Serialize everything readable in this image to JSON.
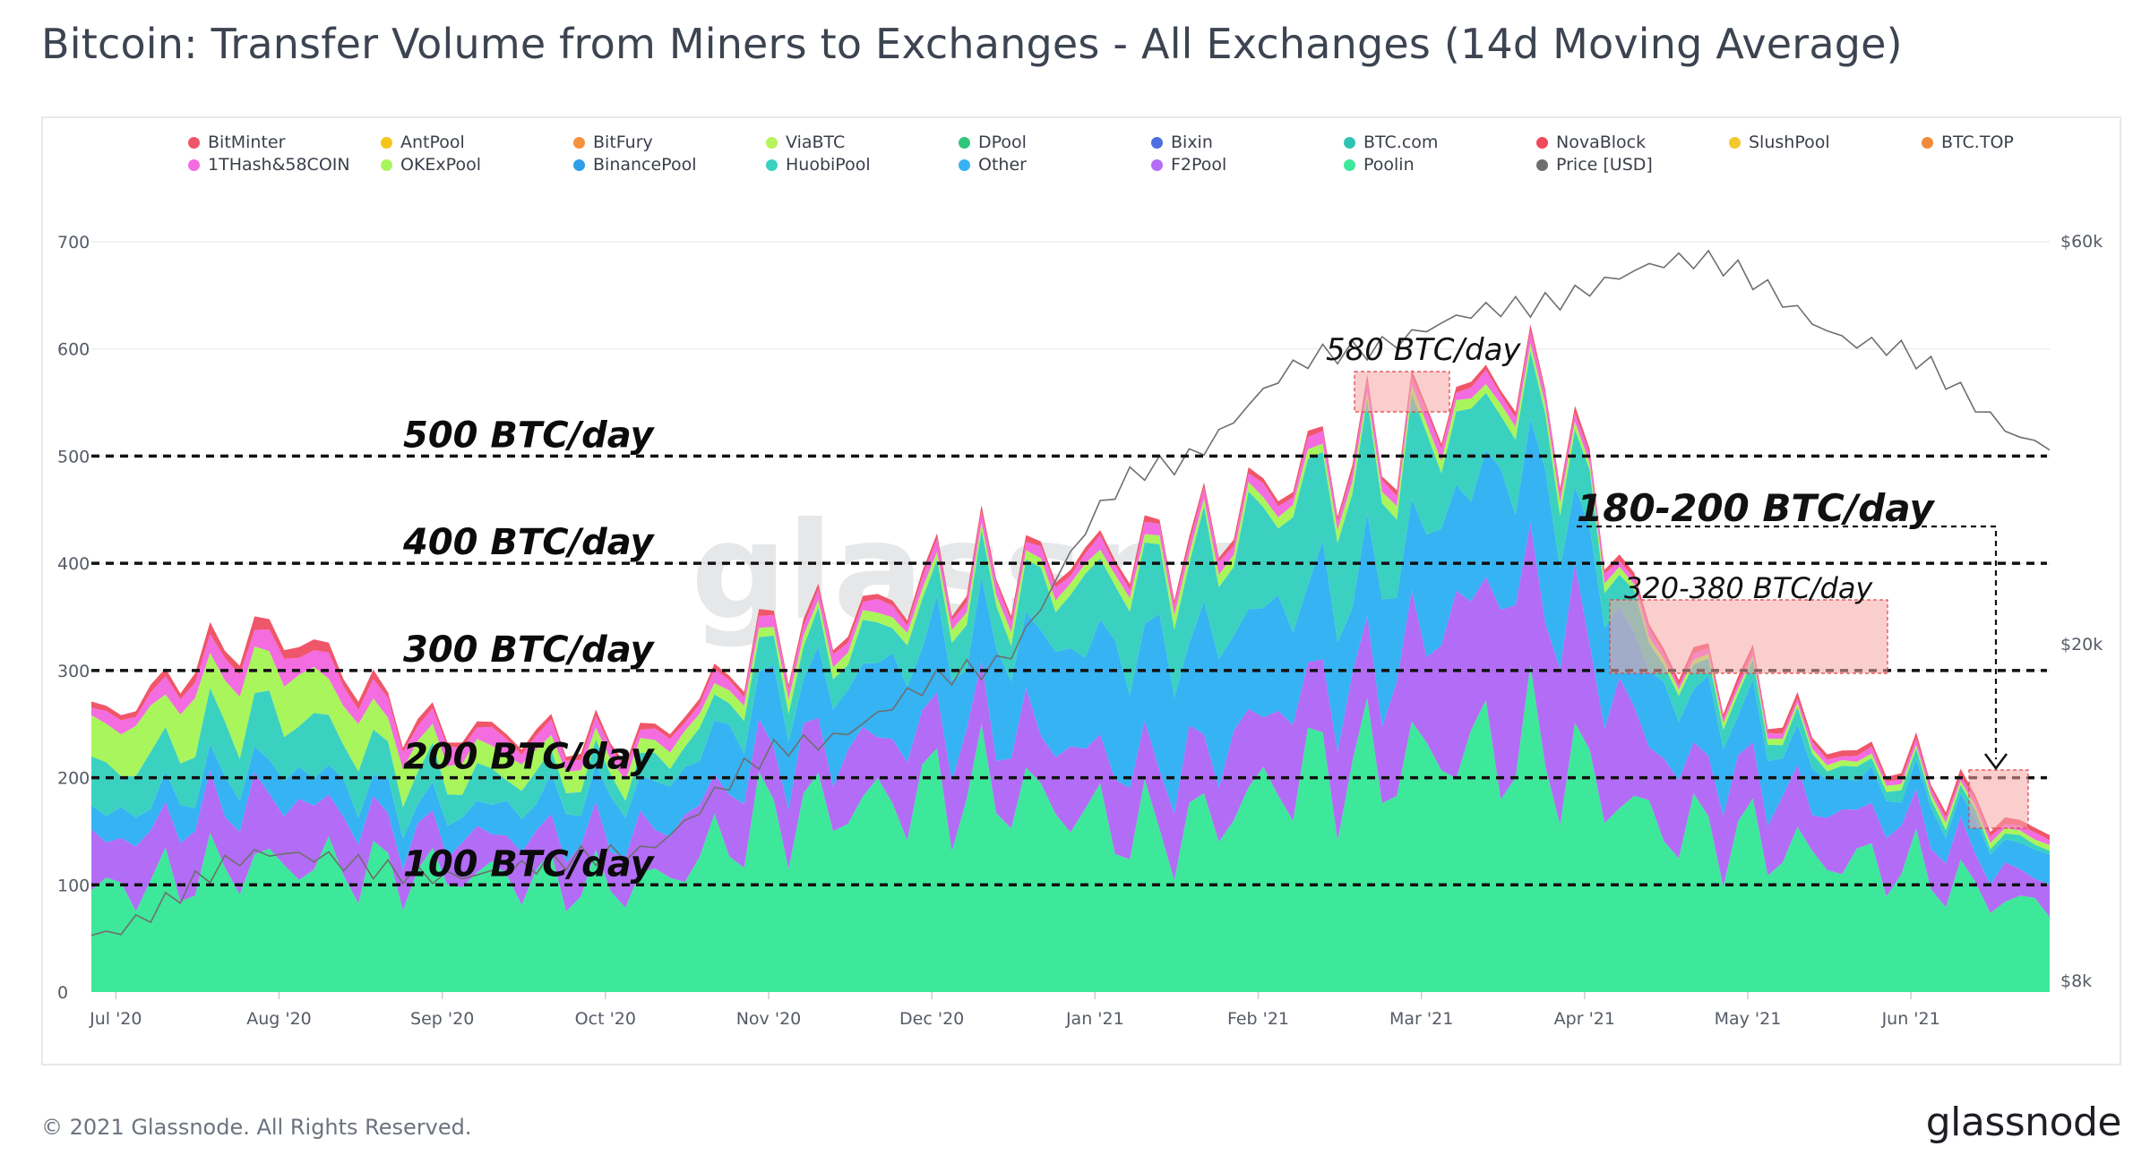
{
  "title": "Bitcoin: Transfer Volume from Miners to Exchanges - All Exchanges (14d Moving Average)",
  "footer": "© 2021 Glassnode. All Rights Reserved.",
  "brand": "glassnode",
  "watermark": "glassnode",
  "legend": [
    {
      "name": "BitMinter",
      "color": "#f0566a"
    },
    {
      "name": "AntPool",
      "color": "#f5c518"
    },
    {
      "name": "BitFury",
      "color": "#f5923e"
    },
    {
      "name": "ViaBTC",
      "color": "#b7f35b"
    },
    {
      "name": "DPool",
      "color": "#2ec77a"
    },
    {
      "name": "Bixin",
      "color": "#4b6fe0"
    },
    {
      "name": "BTC.com",
      "color": "#2fc3b5"
    },
    {
      "name": "NovaBlock",
      "color": "#ee4a5a"
    },
    {
      "name": "SlushPool",
      "color": "#f3c82c"
    },
    {
      "name": "BTC.TOP",
      "color": "#f28a3c"
    },
    {
      "name": "1THash&58COIN",
      "color": "#f36ce0"
    },
    {
      "name": "OKExPool",
      "color": "#a9f55c"
    },
    {
      "name": "BinancePool",
      "color": "#2f9fe8"
    },
    {
      "name": "HuobiPool",
      "color": "#3bd1c0"
    },
    {
      "name": "Other",
      "color": "#36b3f2"
    },
    {
      "name": "F2Pool",
      "color": "#b36cf5"
    },
    {
      "name": "Poolin",
      "color": "#3de89a"
    },
    {
      "name": "Price [USD]",
      "color": "#6f6f6f"
    }
  ],
  "chart_data": {
    "type": "area",
    "title": "Bitcoin: Transfer Volume from Miners to Exchanges - All Exchanges (14d Moving Average)",
    "x_ticks": [
      "Jul '20",
      "Aug '20",
      "Sep '20",
      "Oct '20",
      "Nov '20",
      "Dec '20",
      "Jan '21",
      "Feb '21",
      "Mar '21",
      "Apr '21",
      "May '21",
      "Jun '21"
    ],
    "y_ticks": [
      "0",
      "100",
      "200",
      "300",
      "400",
      "500",
      "600",
      "700"
    ],
    "y2_ticks": [
      "$8k",
      "$20k",
      "$60k"
    ],
    "ylim": [
      0,
      700
    ],
    "grid": true,
    "legend_position": "top",
    "months": [
      "2020-07",
      "2020-08",
      "2020-09",
      "2020-10",
      "2020-11",
      "2020-12",
      "2021-01",
      "2021-02",
      "2021-03",
      "2021-04",
      "2021-05",
      "2021-06"
    ],
    "series": [
      {
        "name": "Poolin",
        "color": "#3de89a",
        "values": [
          95,
          120,
          110,
          100,
          170,
          190,
          150,
          210,
          230,
          150,
          120,
          80
        ]
      },
      {
        "name": "F2Pool",
        "color": "#b36cf5",
        "values": [
          45,
          60,
          35,
          45,
          55,
          60,
          60,
          75,
          150,
          60,
          45,
          25
        ]
      },
      {
        "name": "Other",
        "color": "#36b3f2",
        "values": [
          25,
          30,
          25,
          40,
          60,
          80,
          110,
          90,
          110,
          60,
          30,
          25
        ]
      },
      {
        "name": "HuobiPool",
        "color": "#3bd1c0",
        "values": [
          40,
          50,
          30,
          20,
          30,
          40,
          70,
          100,
          60,
          20,
          10,
          5
        ]
      },
      {
        "name": "OKExPool",
        "color": "#a9f55c",
        "values": [
          40,
          45,
          25,
          15,
          10,
          10,
          10,
          10,
          10,
          5,
          5,
          5
        ]
      },
      {
        "name": "1THash&58COIN",
        "color": "#f36ce0",
        "values": [
          10,
          20,
          15,
          10,
          10,
          10,
          10,
          10,
          10,
          5,
          5,
          5
        ]
      },
      {
        "name": "BitMinter",
        "color": "#f0566a",
        "values": [
          5,
          10,
          5,
          5,
          5,
          5,
          5,
          5,
          5,
          5,
          5,
          5
        ]
      }
    ],
    "price_usd": [
      9200,
      11500,
      10800,
      11500,
      15500,
      19000,
      33000,
      45000,
      51000,
      58000,
      46000,
      35000
    ],
    "annotations": [
      {
        "text": "500 BTC/day",
        "y": 500
      },
      {
        "text": "400 BTC/day",
        "y": 400
      },
      {
        "text": "300 BTC/day",
        "y": 300
      },
      {
        "text": "200 BTC/day",
        "y": 200
      },
      {
        "text": "100 BTC/day",
        "y": 100
      },
      {
        "text": "580 BTC/day"
      },
      {
        "text": "320-380 BTC/day"
      },
      {
        "text": "180-200 BTC/day"
      }
    ]
  }
}
